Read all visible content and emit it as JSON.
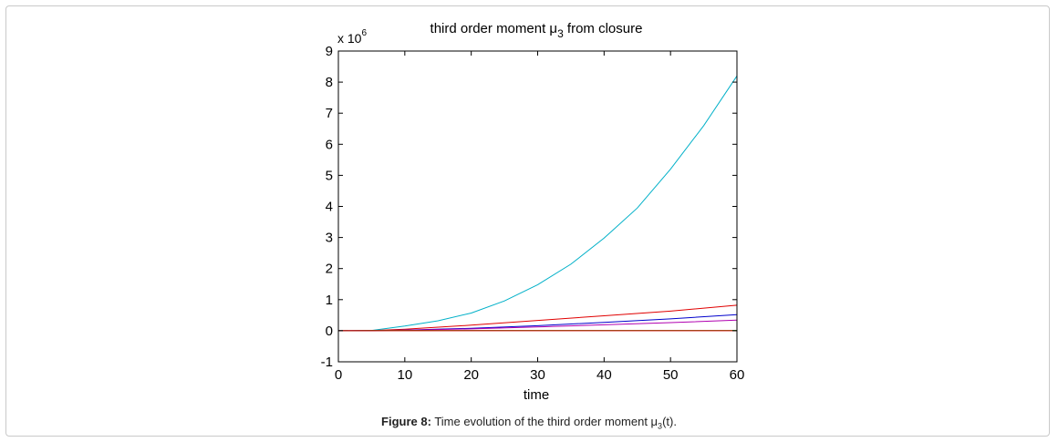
{
  "chart_data": {
    "type": "line",
    "title": "third order moment μ3 from closure",
    "title_main": "third order moment μ",
    "title_sub": "3",
    "title_tail": " from closure",
    "xlabel": "time",
    "ylabel": "",
    "y_multiplier_base": "x 10",
    "y_multiplier_exp": "6",
    "xlim": [
      0,
      60
    ],
    "ylim": [
      -1,
      9
    ],
    "xticks": [
      0,
      10,
      20,
      30,
      40,
      50,
      60
    ],
    "yticks": [
      -1,
      0,
      1,
      2,
      3,
      4,
      5,
      6,
      7,
      8,
      9
    ],
    "grid": false,
    "legend": "none",
    "series": [
      {
        "color": "#00b0c8",
        "x": [
          0,
          5,
          10,
          15,
          20,
          25,
          30,
          35,
          40,
          45,
          50,
          55,
          60
        ],
        "y": [
          0,
          0.01,
          0.15,
          0.32,
          0.57,
          0.96,
          1.48,
          2.14,
          2.98,
          3.95,
          5.2,
          6.6,
          8.2
        ]
      },
      {
        "color": "#e00000",
        "x": [
          0,
          5,
          10,
          20,
          30,
          40,
          50,
          60
        ],
        "y": [
          0,
          0.005,
          0.05,
          0.18,
          0.33,
          0.48,
          0.63,
          0.82
        ]
      },
      {
        "color": "#0000cc",
        "x": [
          0,
          5,
          10,
          20,
          30,
          40,
          50,
          60
        ],
        "y": [
          0,
          0.003,
          0.02,
          0.08,
          0.16,
          0.27,
          0.38,
          0.52
        ]
      },
      {
        "color": "#b000b0",
        "x": [
          0,
          5,
          10,
          20,
          30,
          40,
          50,
          60
        ],
        "y": [
          0,
          0.002,
          0.015,
          0.06,
          0.12,
          0.19,
          0.26,
          0.34
        ]
      },
      {
        "color": "#00a000",
        "x": [
          0,
          5,
          10,
          60
        ],
        "y": [
          0,
          0.01,
          0.01,
          0.01
        ]
      },
      {
        "color": "#e00000",
        "x": [
          0,
          60
        ],
        "y": [
          0,
          0
        ]
      }
    ]
  },
  "caption": {
    "label": "Figure 8:",
    "text_before": " Time evolution of the third order moment μ",
    "text_sub": "3",
    "text_after": "(t)."
  }
}
